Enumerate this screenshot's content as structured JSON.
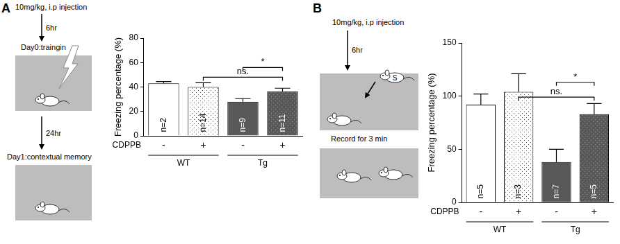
{
  "chart_data": [
    {
      "type": "bar",
      "panel": "A",
      "y_label": "Freezing percentage (%)",
      "categories": [
        "-",
        "+",
        "-",
        "+"
      ],
      "x_row_label": "CDPPB",
      "groups": [
        {
          "label": "WT",
          "from": 0,
          "to": 1
        },
        {
          "label": "Tg",
          "from": 2,
          "to": 3
        }
      ],
      "values": [
        43,
        40,
        28,
        36.5
      ],
      "errors": [
        1.5,
        3.5,
        2.5,
        2.5
      ],
      "bar_labels": [
        "n=2",
        "n=14",
        "n=9",
        "n=11"
      ],
      "colors": [
        "#ffffff",
        "#ffffff",
        "#595959",
        "#595959"
      ],
      "ylim": [
        0,
        80
      ],
      "yticks": [
        0,
        20,
        40,
        60,
        80
      ],
      "grid": false,
      "annotations": [
        {
          "text": "*",
          "from": 2,
          "to": 3,
          "y": 56
        },
        {
          "text": "ns.",
          "from": 1,
          "to": 3,
          "y": 48
        }
      ]
    },
    {
      "type": "bar",
      "panel": "B",
      "y_label": "Freezing percentage (%)",
      "categories": [
        "-",
        "+",
        "-",
        "+"
      ],
      "x_row_label": "CDPPB",
      "groups": [
        {
          "label": "WT",
          "from": 0,
          "to": 1
        },
        {
          "label": "Tg",
          "from": 2,
          "to": 3
        }
      ],
      "values": [
        92,
        104,
        38,
        83
      ],
      "errors": [
        10,
        17,
        12,
        10
      ],
      "bar_labels": [
        "n=5",
        "n=3",
        "n=7",
        "n=5"
      ],
      "colors": [
        "#ffffff",
        "#ffffff",
        "#595959",
        "#595959"
      ],
      "ylim": [
        0,
        150
      ],
      "yticks": [
        0,
        50,
        100,
        150
      ],
      "grid": false,
      "annotations": [
        {
          "text": "*",
          "from": 2,
          "to": 3,
          "y": 113
        },
        {
          "text": "ns.",
          "from": 1,
          "to": 3,
          "y": 99
        }
      ]
    }
  ],
  "schematics": [
    {
      "panel": "A",
      "dose": "10mg/kg, i.p injection",
      "steps": [
        {
          "interval": "6hr",
          "label": "Day0:traingin"
        },
        {
          "interval": "24hr",
          "label": "Day1:contextual memory"
        }
      ]
    },
    {
      "panel": "B",
      "dose": "10mg/kg, i.p injection",
      "interval": "6hr",
      "stranger": "S",
      "label": "Record for 3 min"
    }
  ]
}
